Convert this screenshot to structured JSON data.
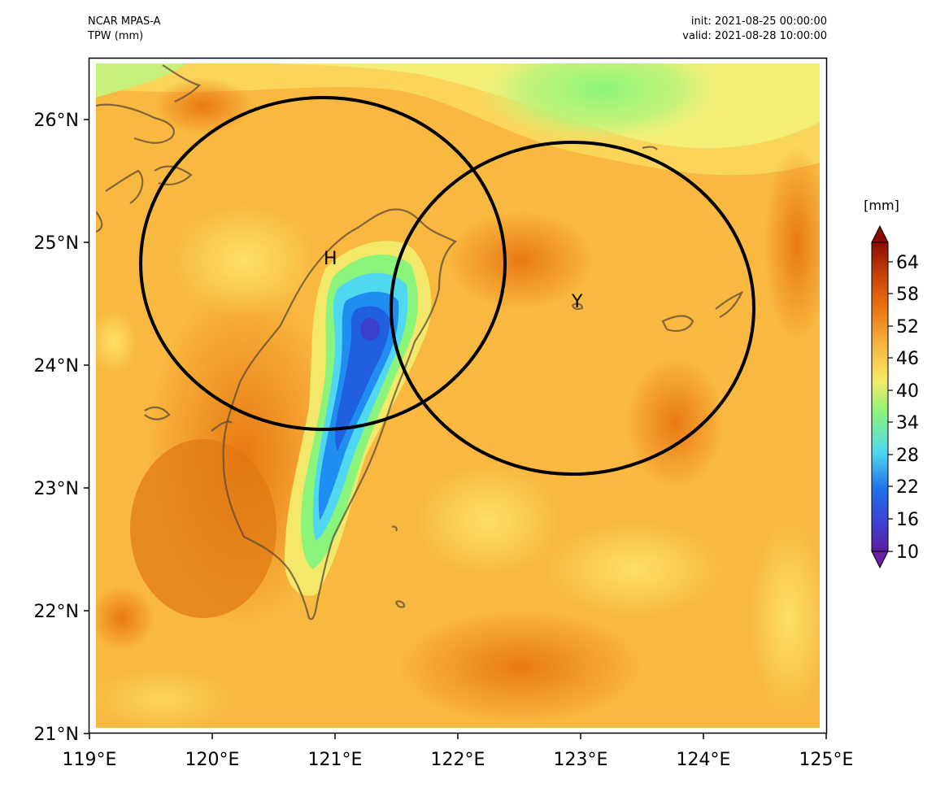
{
  "header": {
    "model": "NCAR MPAS-A",
    "variable": "TPW (mm)",
    "init": "init: 2021-08-25 00:00:00",
    "valid": "valid: 2021-08-28 10:00:00"
  },
  "map": {
    "lon_range": [
      119,
      125
    ],
    "lat_range": [
      21,
      26.5
    ],
    "lon_ticks": [
      "119°E",
      "120°E",
      "121°E",
      "122°E",
      "123°E",
      "124°E",
      "125°E"
    ],
    "lat_ticks": [
      "21°N",
      "22°N",
      "23°N",
      "24°N",
      "25°N",
      "26°N"
    ],
    "markers": [
      {
        "label": "H",
        "lon": 120.95,
        "lat": 24.85
      },
      {
        "label": "Y",
        "lon": 122.95,
        "lat": 24.5
      }
    ]
  },
  "colorbar": {
    "unit": "[mm]",
    "labels": [
      "10",
      "16",
      "22",
      "28",
      "34",
      "40",
      "46",
      "52",
      "58",
      "64"
    ],
    "colors": {
      "low": "#5a1e9e",
      "blue": "#1f6fe8",
      "cyan": "#4fd8f0",
      "green": "#8af57a",
      "yellow": "#f6ea6a",
      "orange": "#f5b03a",
      "dark_orange": "#e86d0f",
      "high": "#8a0b00"
    }
  }
}
